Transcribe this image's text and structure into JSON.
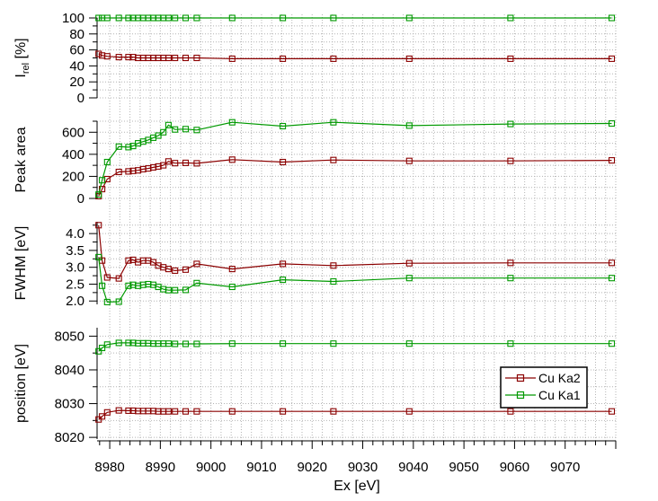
{
  "colors": {
    "cu_ka2": "#8b0000",
    "cu_ka1": "#009900",
    "grid": "#b4b4b4"
  },
  "chart_data": {
    "type": "line",
    "xlabel": "Ex [eV]",
    "xlim": [
      8977.5,
      9080
    ],
    "x_ticks": [
      8980,
      8990,
      9000,
      9010,
      9020,
      9030,
      9040,
      9050,
      9060,
      9070
    ],
    "x": [
      8977.8,
      8978.5,
      8979.5,
      8981.8,
      8983.7,
      8984.6,
      8985.6,
      8986.6,
      8987.6,
      8988.6,
      8989.6,
      8990.6,
      8991.6,
      8992.9,
      8995.0,
      8997.2,
      9004.2,
      9014.2,
      9024.2,
      9039.2,
      9059.2,
      9079.2
    ],
    "legend": {
      "position": "lower-right",
      "entries": [
        "Cu Ka2",
        "Cu Ka1"
      ]
    },
    "grid": true,
    "panels": [
      {
        "id": "irel",
        "ylabel_main": "I",
        "ylabel_sub": "rel",
        "ylabel_unit": " [%]",
        "ylim": [
          0,
          100
        ],
        "y_ticks": [
          0,
          20,
          40,
          60,
          80,
          100
        ],
        "series": [
          {
            "name": "Cu Ka2",
            "values": [
              55,
              53,
              52,
              51,
              51,
              51,
              50,
              50,
              50,
              50,
              50,
              50,
              50,
              50,
              50,
              50,
              49,
              49,
              49,
              49,
              49,
              49
            ]
          },
          {
            "name": "Cu Ka1",
            "values": [
              100,
              100,
              100,
              100,
              100,
              100,
              100,
              100,
              100,
              100,
              100,
              100,
              100,
              100,
              100,
              100,
              100,
              100,
              100,
              100,
              100,
              100
            ]
          }
        ]
      },
      {
        "id": "peak_area",
        "ylabel": "Peak area",
        "ylim": [
          0,
          700
        ],
        "y_ticks": [
          0,
          200,
          400,
          600
        ],
        "series": [
          {
            "name": "Cu Ka2",
            "values": [
              20,
              85,
              175,
              240,
              245,
              250,
              255,
              265,
              272,
              282,
              290,
              300,
              335,
              320,
              322,
              318,
              352,
              330,
              348,
              340,
              340,
              345
            ]
          },
          {
            "name": "Cu Ka1",
            "values": [
              35,
              165,
              330,
              470,
              465,
              475,
              500,
              515,
              530,
              550,
              570,
              600,
              665,
              625,
              628,
              620,
              690,
              655,
              690,
              660,
              675,
              680
            ]
          }
        ]
      },
      {
        "id": "fwhm",
        "ylabel": "FWHM [eV]",
        "ylim": [
          1.9,
          4.35
        ],
        "y_ticks": [
          2.0,
          2.5,
          3.0,
          3.5,
          4.0
        ],
        "tick_labels": [
          "2.0",
          "2.5",
          "3.0",
          "3.5",
          "4.0"
        ],
        "series": [
          {
            "name": "Cu Ka2",
            "values": [
              4.25,
              3.2,
              2.7,
              2.67,
              3.2,
              3.22,
              3.15,
              3.2,
              3.2,
              3.15,
              3.05,
              3.0,
              2.95,
              2.9,
              2.93,
              3.1,
              2.95,
              3.1,
              3.05,
              3.12,
              3.13,
              3.13
            ]
          },
          {
            "name": "Cu Ka1",
            "values": [
              3.3,
              2.45,
              1.97,
              1.98,
              2.45,
              2.48,
              2.45,
              2.48,
              2.5,
              2.48,
              2.42,
              2.35,
              2.32,
              2.32,
              2.33,
              2.53,
              2.42,
              2.63,
              2.58,
              2.68,
              2.68,
              2.68
            ]
          }
        ]
      },
      {
        "id": "position",
        "ylabel": "position [eV]",
        "ylim": [
          8019.5,
          8052.5
        ],
        "y_ticks": [
          8020,
          8030,
          8040,
          8050
        ],
        "series": [
          {
            "name": "Cu Ka2",
            "values": [
              8025.3,
              8026.2,
              8027.4,
              8028.0,
              8027.9,
              8027.9,
              8027.8,
              8027.8,
              8027.8,
              8027.8,
              8027.7,
              8027.7,
              8027.7,
              8027.7,
              8027.7,
              8027.7,
              8027.7,
              8027.7,
              8027.7,
              8027.7,
              8027.7,
              8027.7
            ]
          },
          {
            "name": "Cu Ka1",
            "values": [
              8045.5,
              8046.5,
              8047.5,
              8048.0,
              8048.0,
              8048.0,
              8047.9,
              8047.9,
              8047.9,
              8047.8,
              8047.8,
              8047.8,
              8047.8,
              8047.7,
              8047.7,
              8047.7,
              8047.8,
              8047.8,
              8047.8,
              8047.8,
              8047.8,
              8047.8
            ]
          }
        ]
      }
    ]
  }
}
